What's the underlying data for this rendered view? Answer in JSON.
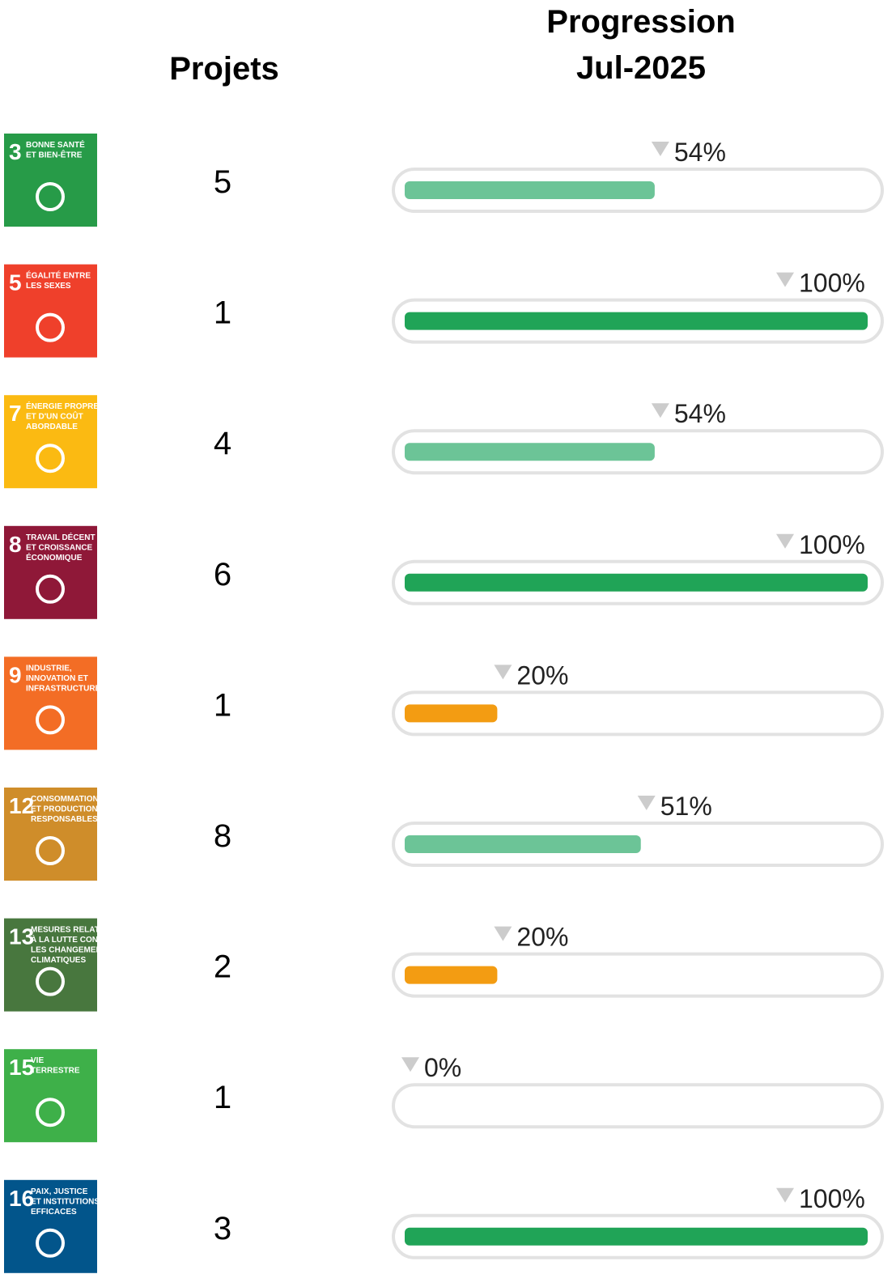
{
  "header": {
    "projects": "Projets",
    "progress_title": [
      "Progression",
      "Jul-2025"
    ]
  },
  "rows": [
    {
      "icon": {
        "number": "3",
        "lines": [
          "BONNE SANTÉ",
          "ET BIEN-ÊTRE"
        ],
        "color": "#279b48"
      },
      "projects": 5,
      "progress": 54,
      "progress_label": "54%",
      "bar_color": "#6cc497"
    },
    {
      "icon": {
        "number": "5",
        "lines": [
          "ÉGALITÉ ENTRE",
          "LES SEXES"
        ],
        "color": "#ef402b"
      },
      "projects": 1,
      "progress": 100,
      "progress_label": "100%",
      "bar_color": "#20a457"
    },
    {
      "icon": {
        "number": "7",
        "lines": [
          "ÉNERGIE PROPRE",
          "ET D'UN COÛT",
          "ABORDABLE"
        ],
        "color": "#fbba12"
      },
      "projects": 4,
      "progress": 54,
      "progress_label": "54%",
      "bar_color": "#6cc497"
    },
    {
      "icon": {
        "number": "8",
        "lines": [
          "TRAVAIL DÉCENT",
          "ET CROISSANCE",
          "ÉCONOMIQUE"
        ],
        "color": "#8f1838"
      },
      "projects": 6,
      "progress": 100,
      "progress_label": "100%",
      "bar_color": "#20a457"
    },
    {
      "icon": {
        "number": "9",
        "lines": [
          "INDUSTRIE,",
          "INNOVATION ET",
          "INFRASTRUCTURE"
        ],
        "color": "#f36d25"
      },
      "projects": 1,
      "progress": 20,
      "progress_label": "20%",
      "bar_color": "#f39c12"
    },
    {
      "icon": {
        "number": "12",
        "lines": [
          "CONSOMMATION",
          "ET PRODUCTION",
          "RESPONSABLES"
        ],
        "color": "#cf8d2a"
      },
      "projects": 8,
      "progress": 51,
      "progress_label": "51%",
      "bar_color": "#6cc497"
    },
    {
      "icon": {
        "number": "13",
        "lines": [
          "MESURES RELATIVES",
          "À LA LUTTE CONTRE",
          "LES CHANGEMENTS",
          "CLIMATIQUES"
        ],
        "color": "#48773e"
      },
      "projects": 2,
      "progress": 20,
      "progress_label": "20%",
      "bar_color": "#f39c12"
    },
    {
      "icon": {
        "number": "15",
        "lines": [
          "VIE",
          "TERRESTRE"
        ],
        "color": "#3eb049"
      },
      "projects": 1,
      "progress": 0,
      "progress_label": "0%",
      "bar_color": "#f39c12"
    },
    {
      "icon": {
        "number": "16",
        "lines": [
          "PAIX, JUSTICE",
          "ET INSTITUTIONS",
          "EFFICACES"
        ],
        "color": "#02558b"
      },
      "projects": 3,
      "progress": 100,
      "progress_label": "100%",
      "bar_color": "#20a457"
    }
  ]
}
